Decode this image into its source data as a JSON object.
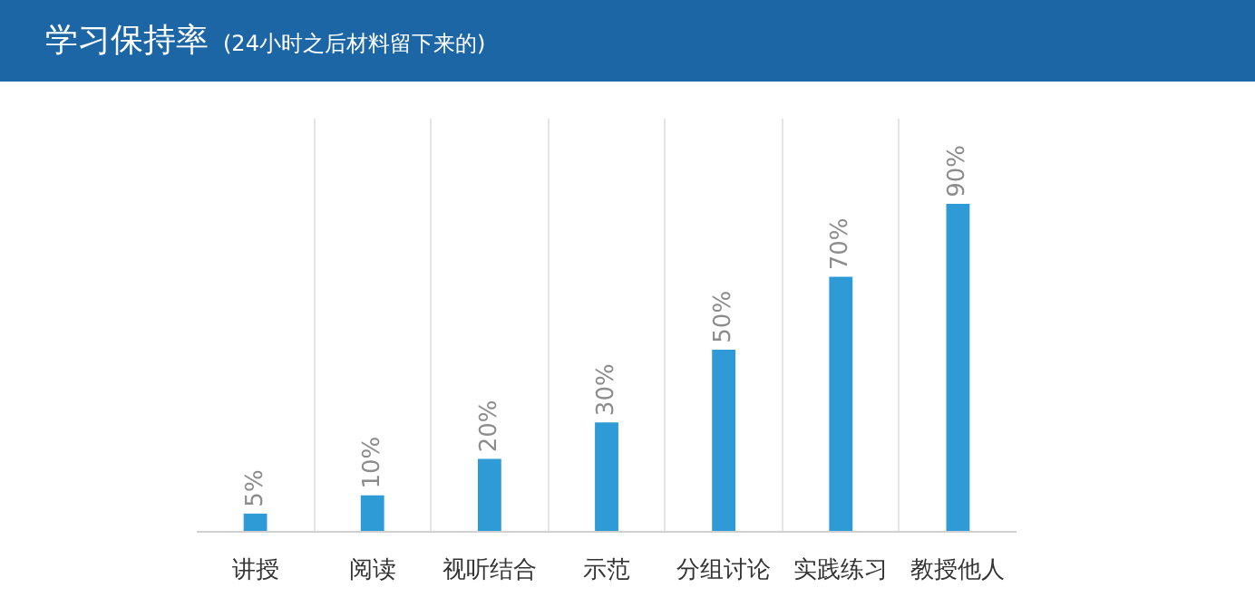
{
  "chart_data": {
    "type": "bar",
    "title": "学习保持率",
    "subtitle": "(24小时之后材料留下来的)",
    "categories": [
      "讲授",
      "阅读",
      "视听结合",
      "示范",
      "分组讨论",
      "实践练习",
      "教授他人"
    ],
    "values": [
      5,
      10,
      20,
      30,
      50,
      70,
      90
    ],
    "value_labels": [
      "5%",
      "10%",
      "20%",
      "30%",
      "50%",
      "70%",
      "90%"
    ],
    "color": "#2e9bd6",
    "grid": "x",
    "tick_labels": "x"
  }
}
